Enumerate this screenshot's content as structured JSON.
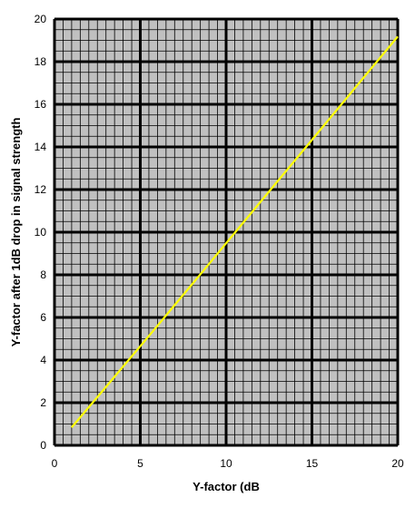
{
  "chart_data": {
    "type": "line",
    "title": "",
    "xlabel": "Y-factor (dB",
    "ylabel": "Y-factor after 1dB drop in signal strength",
    "xlim": [
      0,
      20
    ],
    "ylim": [
      0,
      20
    ],
    "xticks": [
      "0",
      "5",
      "10",
      "15",
      "20"
    ],
    "yticks": [
      "0",
      "2",
      "4",
      "6",
      "8",
      "10",
      "12",
      "14",
      "16",
      "18",
      "20"
    ],
    "grid": {
      "major": true,
      "minor": true,
      "minor_step": 0.5
    },
    "plot_background": "#c0c0c0",
    "series": [
      {
        "color": "#ffff00",
        "x": [
          1,
          2,
          3,
          4,
          5,
          6,
          7,
          8,
          9,
          10,
          11,
          12,
          13,
          14,
          15,
          16,
          17,
          18,
          19,
          20
        ],
        "y": [
          0.84,
          1.79,
          2.74,
          3.7,
          4.65,
          5.61,
          6.58,
          7.54,
          8.51,
          9.48,
          10.45,
          11.42,
          12.39,
          13.36,
          14.33,
          15.3,
          16.27,
          17.24,
          18.21,
          19.18
        ]
      }
    ]
  }
}
